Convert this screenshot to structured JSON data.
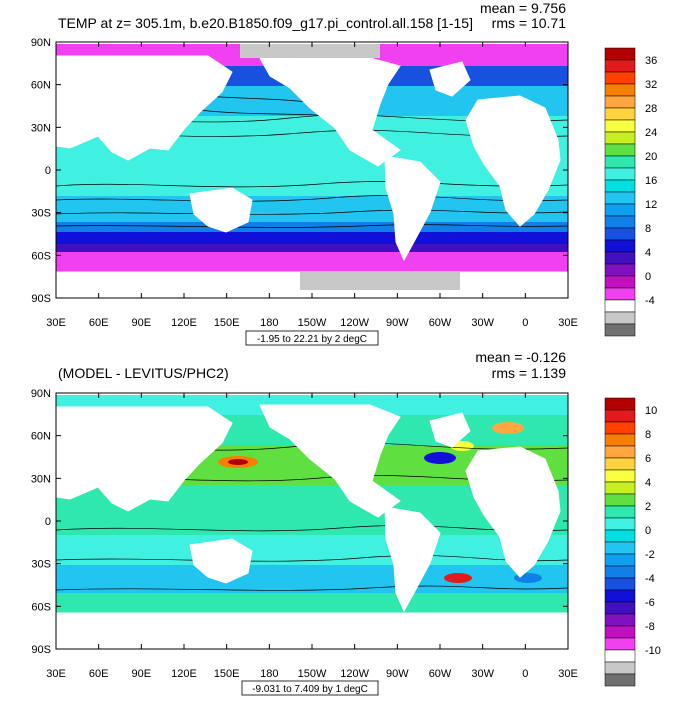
{
  "panels": [
    {
      "title": "TEMP at z= 305.1m, b.e20.B1850.f09_g17.pi_control.all.158 [1-15]",
      "mean": "mean = 9.756",
      "rms": "rms = 10.71",
      "range": "-1.95 to 22.21 by 2 degC",
      "colorbar": {
        "labels": [
          "36",
          "32",
          "28",
          "24",
          "20",
          "16",
          "12",
          "8",
          "4",
          "0",
          "-4"
        ],
        "colors": [
          "#b30000",
          "#e31a1c",
          "#ff4000",
          "#f77f00",
          "#ffa640",
          "#ffd23f",
          "#f7ff3f",
          "#c8f020",
          "#60e040",
          "#2ee8b0",
          "#40f0e0",
          "#00e0e0",
          "#22c4f0",
          "#0ea0f0",
          "#1080e8",
          "#1850e0",
          "#1010d8",
          "#4010c0",
          "#8010c0",
          "#c010c0",
          "#f040f0",
          "#ffffff",
          "#c8c8c8",
          "#707070"
        ]
      }
    },
    {
      "title": "(MODEL - LEVITUS/PHC2)",
      "mean": "mean = -0.126",
      "rms": "rms = 1.139",
      "range": "-9.031 to 7.409 by 1 degC",
      "colorbar": {
        "labels": [
          "10",
          "8",
          "6",
          "4",
          "2",
          "0",
          "-2",
          "-4",
          "-6",
          "-8",
          "-10"
        ],
        "colors": [
          "#b30000",
          "#e31a1c",
          "#ff4000",
          "#f77f00",
          "#ffa640",
          "#ffd23f",
          "#f7ff3f",
          "#c8f020",
          "#60e040",
          "#2ee8b0",
          "#40f0e0",
          "#00e0e0",
          "#22c4f0",
          "#0ea0f0",
          "#1080e8",
          "#1850e0",
          "#1010d8",
          "#4010c0",
          "#8010c0",
          "#c010c0",
          "#f040f0",
          "#ffffff",
          "#c8c8c8",
          "#707070"
        ]
      }
    }
  ],
  "axes": {
    "lat_labels": [
      "90N",
      "60N",
      "30N",
      "0",
      "30S",
      "60S",
      "90S"
    ],
    "lon_labels": [
      "30E",
      "60E",
      "90E",
      "120E",
      "150E",
      "180",
      "150W",
      "120W",
      "90W",
      "60W",
      "30W",
      "0",
      "30E"
    ]
  },
  "colors": {
    "ocean_tropical": "#40f0e0",
    "ocean_mid": "#22c4f0",
    "ocean_cold": "#1850e0",
    "polar": "#f040f0",
    "land": "#ffffff",
    "ice": "#c8c8c8",
    "anomaly_pos": "#60e040",
    "anomaly_neg": "#22c4f0"
  }
}
